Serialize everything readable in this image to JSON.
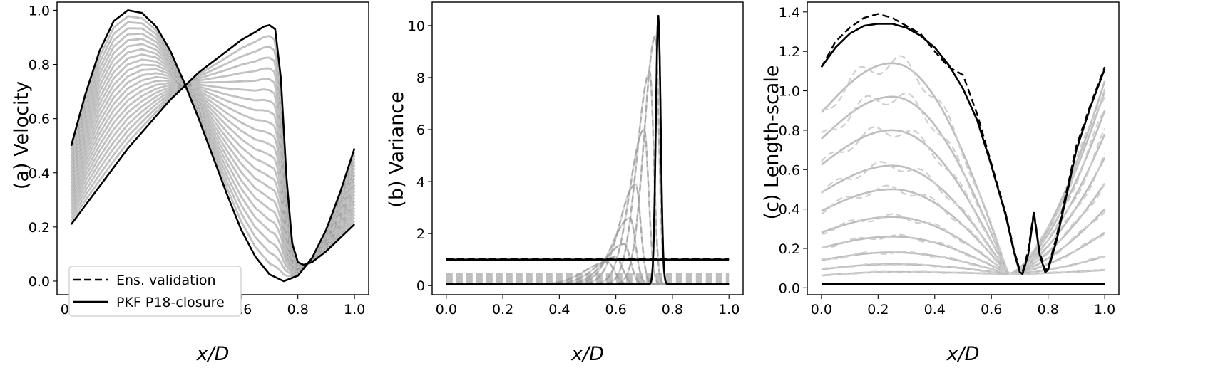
{
  "chart_data": [
    {
      "type": "line",
      "ylabel": "(a) Velocity",
      "xlabel": "x/D",
      "xlim": [
        -0.05,
        1.05
      ],
      "ylim": [
        -0.05,
        1.03
      ],
      "xticks": [
        "0.0",
        "0.2",
        "0.4",
        "0.6",
        "0.8",
        "1.0"
      ],
      "yticks": [
        "0.0",
        "0.2",
        "0.4",
        "0.6",
        "0.8",
        "1.0"
      ],
      "legend": {
        "position": "lower-left",
        "entries": [
          {
            "label": "Ens. validation",
            "style": "dashed"
          },
          {
            "label": "PKF P18-closure",
            "style": "solid"
          }
        ]
      },
      "series": [
        {
          "style": "solid",
          "color": "#000000",
          "x": [
            0,
            0.05,
            0.1,
            0.15,
            0.2,
            0.25,
            0.3,
            0.35,
            0.4,
            0.45,
            0.5,
            0.55,
            0.6,
            0.65,
            0.7,
            0.75,
            0.8,
            0.85,
            0.9,
            0.95,
            1.0
          ],
          "y": [
            0.5,
            0.69,
            0.85,
            0.96,
            1.0,
            0.99,
            0.94,
            0.85,
            0.73,
            0.6,
            0.46,
            0.32,
            0.19,
            0.09,
            0.025,
            0.0,
            0.02,
            0.085,
            0.19,
            0.33,
            0.49
          ]
        },
        {
          "style": "solid",
          "color": "#000000",
          "x": [
            0,
            0.05,
            0.1,
            0.15,
            0.2,
            0.25,
            0.3,
            0.35,
            0.4,
            0.45,
            0.5,
            0.55,
            0.6,
            0.65,
            0.68,
            0.7,
            0.72,
            0.74,
            0.76,
            0.78,
            0.8,
            0.82,
            0.85,
            0.9,
            0.95,
            1.0
          ],
          "y": [
            0.21,
            0.28,
            0.35,
            0.42,
            0.49,
            0.55,
            0.61,
            0.67,
            0.72,
            0.77,
            0.81,
            0.85,
            0.89,
            0.92,
            0.94,
            0.945,
            0.93,
            0.75,
            0.38,
            0.14,
            0.07,
            0.06,
            0.07,
            0.11,
            0.16,
            0.21
          ]
        },
        {
          "style": "dashed",
          "color": "#aaaaaa",
          "shift": [
            0.02,
            0.04,
            0.06,
            0.08,
            0.1,
            0.12,
            0.14,
            0.16,
            0.18,
            0.2,
            0.22,
            0.24,
            0.26,
            0.28,
            0.3,
            0.32,
            0.34,
            0.36,
            0.38,
            0.4,
            0.42,
            0.44
          ],
          "note": "family of intermediate states between the two black curves"
        }
      ]
    },
    {
      "type": "line",
      "ylabel": "(b) Variance",
      "xlabel": "x/D",
      "xlim": [
        -0.05,
        1.05
      ],
      "ylim": [
        -0.35,
        10.9
      ],
      "xticks": [
        "0.0",
        "0.2",
        "0.4",
        "0.6",
        "0.8",
        "1.0"
      ],
      "yticks": [
        "0",
        "2",
        "4",
        "6",
        "8",
        "10"
      ],
      "series": [
        {
          "style": "solid",
          "color": "#000000",
          "x": [
            0,
            1
          ],
          "y": [
            1.0,
            1.0
          ]
        },
        {
          "style": "dashed",
          "color": "#000000",
          "x": [
            0,
            1
          ],
          "y": [
            1.0,
            1.0
          ]
        },
        {
          "style": "solid",
          "color": "#000000",
          "peak_x": 0.75,
          "peak_y": 10.4,
          "width": 0.012,
          "base": 0.05
        },
        {
          "style": "dashed",
          "color": "#999999",
          "peaks": [
            {
              "x": 0.57,
              "y": 0.9
            },
            {
              "x": 0.6,
              "y": 1.1
            },
            {
              "x": 0.63,
              "y": 1.6
            },
            {
              "x": 0.65,
              "y": 2.6
            },
            {
              "x": 0.67,
              "y": 3.9
            },
            {
              "x": 0.7,
              "y": 6.0
            },
            {
              "x": 0.72,
              "y": 8.2
            },
            {
              "x": 0.74,
              "y": 9.6
            }
          ]
        }
      ]
    },
    {
      "type": "line",
      "ylabel": "(c) Length-scale",
      "xlabel": "x/D",
      "xlim": [
        -0.05,
        1.05
      ],
      "ylim": [
        -0.035,
        1.45
      ],
      "xticks": [
        "0.0",
        "0.2",
        "0.4",
        "0.6",
        "0.8",
        "1.0"
      ],
      "yticks": [
        "0.0",
        "0.2",
        "0.4",
        "0.6",
        "0.8",
        "1.0",
        "1.2",
        "1.4"
      ],
      "series": [
        {
          "style": "solid",
          "color": "#000000",
          "x": [
            0,
            0.05,
            0.1,
            0.15,
            0.2,
            0.25,
            0.3,
            0.35,
            0.4,
            0.45,
            0.5,
            0.55,
            0.6,
            0.65,
            0.68,
            0.7,
            0.71,
            0.73,
            0.75,
            0.77,
            0.79,
            0.8,
            0.83,
            0.87,
            0.9,
            0.95,
            1.0
          ],
          "y": [
            1.12,
            1.22,
            1.29,
            1.33,
            1.34,
            1.34,
            1.32,
            1.28,
            1.22,
            1.13,
            1.01,
            0.85,
            0.62,
            0.37,
            0.18,
            0.08,
            0.07,
            0.17,
            0.38,
            0.17,
            0.08,
            0.09,
            0.24,
            0.5,
            0.7,
            0.92,
            1.11
          ]
        },
        {
          "style": "dashed",
          "color": "#000000",
          "x": [
            0,
            0.05,
            0.1,
            0.15,
            0.2,
            0.25,
            0.3,
            0.35,
            0.4,
            0.45,
            0.5,
            0.55,
            0.6,
            0.65,
            0.68,
            0.7,
            0.71,
            0.73,
            0.75,
            0.77,
            0.79,
            0.8,
            0.83,
            0.87,
            0.9,
            0.95,
            1.0
          ],
          "y": [
            1.12,
            1.25,
            1.32,
            1.37,
            1.39,
            1.37,
            1.33,
            1.29,
            1.2,
            1.12,
            1.08,
            0.88,
            0.63,
            0.38,
            0.19,
            0.09,
            0.08,
            0.19,
            0.39,
            0.18,
            0.09,
            0.1,
            0.26,
            0.52,
            0.72,
            0.93,
            1.12
          ]
        },
        {
          "style": "solid",
          "color": "#000000",
          "x": [
            0,
            1
          ],
          "y": [
            0.02,
            0.02
          ]
        },
        {
          "style": "mixed",
          "color": "#bbbbbb",
          "family_peaks": [
            0.08,
            0.12,
            0.18,
            0.26,
            0.36,
            0.5,
            0.62,
            0.8,
            0.97,
            1.14
          ],
          "family_ends": [
            0.09,
            0.16,
            0.28,
            0.4,
            0.53,
            0.66,
            0.78,
            0.9,
            1.0,
            1.05
          ]
        }
      ]
    }
  ]
}
